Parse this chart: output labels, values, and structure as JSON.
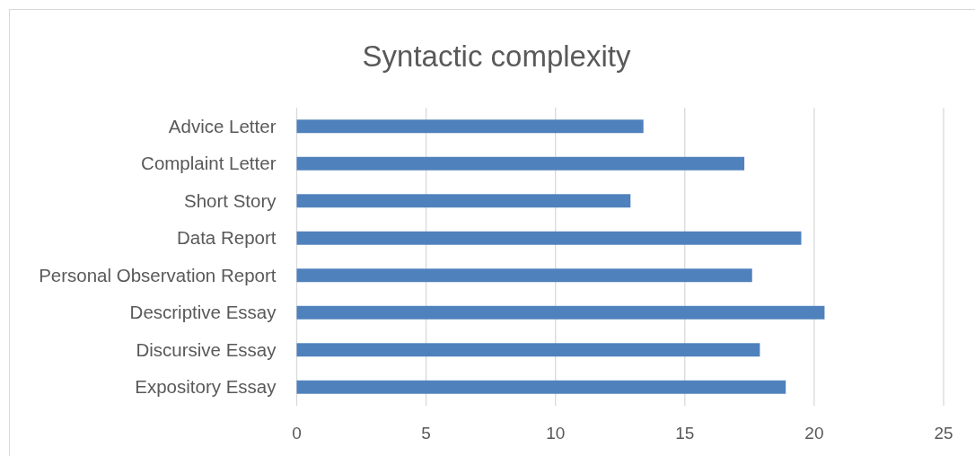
{
  "chart_data": {
    "type": "bar",
    "orientation": "horizontal",
    "title": "Syntactic complexity",
    "categories": [
      "Advice Letter",
      "Complaint Letter",
      "Short Story",
      "Data Report",
      "Personal Observation Report",
      "Descriptive Essay",
      "Discursive Essay",
      "Expository Essay"
    ],
    "values": [
      13.4,
      17.3,
      12.9,
      19.5,
      17.6,
      20.4,
      17.9,
      18.9
    ],
    "color": "#4f81bd",
    "xlim": [
      0,
      25
    ],
    "xticks": [
      0,
      5,
      10,
      15,
      20,
      25
    ],
    "grid": "x"
  }
}
